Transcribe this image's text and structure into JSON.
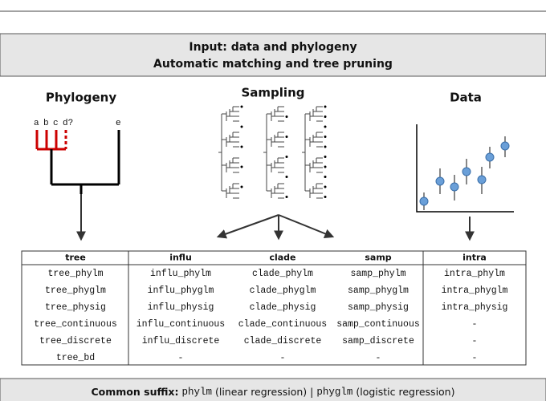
{
  "header": {
    "lines": [
      "Input: data and phylogeny",
      "Automatic matching and tree pruning"
    ]
  },
  "panels": {
    "phylogeny": {
      "label": "Phylogeny",
      "tips": [
        "a",
        "b",
        "c",
        "d?",
        "e"
      ]
    },
    "sampling": {
      "label": "Sampling"
    },
    "data": {
      "label": "Data"
    }
  },
  "table": {
    "columns": [
      "tree",
      "influ",
      "clade",
      "samp",
      "intra"
    ],
    "rows": [
      [
        "tree_phylm",
        "influ_phylm",
        "clade_phylm",
        "samp_phylm",
        "intra_phylm"
      ],
      [
        "tree_phyglm",
        "influ_phyglm",
        "clade_phyglm",
        "samp_phyglm",
        "intra_phyglm"
      ],
      [
        "tree_physig",
        "influ_physig",
        "clade_physig",
        "samp_physig",
        "intra_physig"
      ],
      [
        "tree_continuous",
        "influ_continuous",
        "clade_continuous",
        "samp_continuous",
        "-"
      ],
      [
        "tree_discrete",
        "influ_discrete",
        "clade_discrete",
        "samp_discrete",
        "-"
      ],
      [
        "tree_bd",
        "-",
        "-",
        "-",
        "-"
      ]
    ]
  },
  "footer": {
    "label": "Common suffix:",
    "code1": "phylm",
    "desc1": "(linear regression) |",
    "code2": "phyglm",
    "desc2": "(logistic regression)"
  }
}
